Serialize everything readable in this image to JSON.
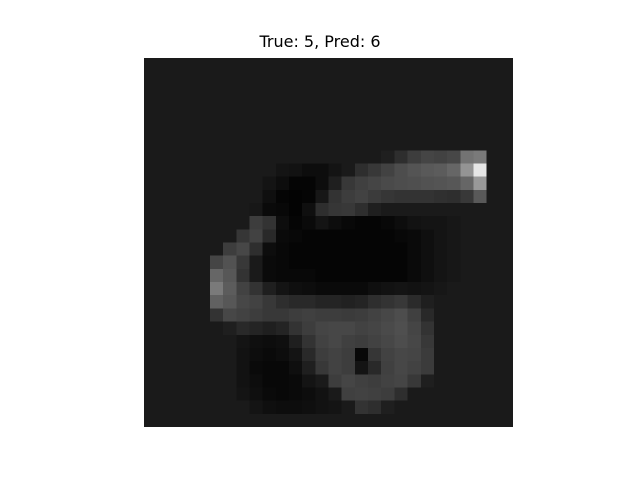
{
  "figure": {
    "title": "True: 5, Pred: 6",
    "true_label": 5,
    "predicted_label": 6,
    "colormap": "gray",
    "image_size": [
      28,
      28
    ],
    "background_value": 0.1
  },
  "pixels": [
    [
      0.1,
      0.1,
      0.1,
      0.1,
      0.1,
      0.1,
      0.1,
      0.1,
      0.1,
      0.1,
      0.1,
      0.1,
      0.1,
      0.1,
      0.1,
      0.1,
      0.1,
      0.1,
      0.1,
      0.1,
      0.1,
      0.1,
      0.1,
      0.1,
      0.1,
      0.1,
      0.1,
      0.1
    ],
    [
      0.1,
      0.1,
      0.1,
      0.1,
      0.1,
      0.1,
      0.1,
      0.1,
      0.1,
      0.1,
      0.1,
      0.1,
      0.1,
      0.1,
      0.1,
      0.1,
      0.1,
      0.1,
      0.1,
      0.1,
      0.1,
      0.1,
      0.1,
      0.1,
      0.1,
      0.1,
      0.1,
      0.1
    ],
    [
      0.1,
      0.1,
      0.1,
      0.1,
      0.1,
      0.1,
      0.1,
      0.1,
      0.1,
      0.1,
      0.1,
      0.1,
      0.1,
      0.1,
      0.1,
      0.1,
      0.1,
      0.1,
      0.1,
      0.1,
      0.1,
      0.1,
      0.1,
      0.1,
      0.1,
      0.1,
      0.1,
      0.1
    ],
    [
      0.1,
      0.1,
      0.1,
      0.1,
      0.1,
      0.1,
      0.1,
      0.1,
      0.1,
      0.1,
      0.1,
      0.1,
      0.1,
      0.1,
      0.1,
      0.1,
      0.1,
      0.1,
      0.1,
      0.1,
      0.1,
      0.1,
      0.1,
      0.1,
      0.1,
      0.1,
      0.1,
      0.1
    ],
    [
      0.1,
      0.1,
      0.1,
      0.1,
      0.1,
      0.1,
      0.1,
      0.1,
      0.1,
      0.1,
      0.1,
      0.1,
      0.1,
      0.1,
      0.1,
      0.1,
      0.1,
      0.1,
      0.1,
      0.1,
      0.1,
      0.1,
      0.1,
      0.1,
      0.1,
      0.1,
      0.1,
      0.1
    ],
    [
      0.1,
      0.1,
      0.1,
      0.1,
      0.1,
      0.1,
      0.1,
      0.1,
      0.1,
      0.1,
      0.1,
      0.1,
      0.1,
      0.1,
      0.1,
      0.1,
      0.1,
      0.1,
      0.1,
      0.1,
      0.1,
      0.1,
      0.1,
      0.1,
      0.1,
      0.1,
      0.1,
      0.1
    ],
    [
      0.1,
      0.1,
      0.1,
      0.1,
      0.1,
      0.1,
      0.1,
      0.1,
      0.1,
      0.1,
      0.1,
      0.1,
      0.1,
      0.1,
      0.1,
      0.1,
      0.1,
      0.1,
      0.1,
      0.1,
      0.1,
      0.1,
      0.1,
      0.1,
      0.1,
      0.1,
      0.1,
      0.1
    ],
    [
      0.1,
      0.1,
      0.1,
      0.1,
      0.1,
      0.1,
      0.1,
      0.1,
      0.1,
      0.1,
      0.1,
      0.1,
      0.1,
      0.1,
      0.1,
      0.1,
      0.1,
      0.1,
      0.12,
      0.18,
      0.24,
      0.27,
      0.26,
      0.28,
      0.45,
      0.48,
      0.1,
      0.1
    ],
    [
      0.1,
      0.1,
      0.1,
      0.1,
      0.1,
      0.1,
      0.1,
      0.1,
      0.1,
      0.1,
      0.08,
      0.07,
      0.05,
      0.05,
      0.08,
      0.1,
      0.18,
      0.22,
      0.26,
      0.3,
      0.33,
      0.35,
      0.36,
      0.4,
      0.58,
      0.9,
      0.1,
      0.1
    ],
    [
      0.1,
      0.1,
      0.1,
      0.1,
      0.1,
      0.1,
      0.1,
      0.1,
      0.1,
      0.08,
      0.05,
      0.02,
      0.02,
      0.05,
      0.12,
      0.22,
      0.25,
      0.27,
      0.29,
      0.3,
      0.31,
      0.32,
      0.33,
      0.34,
      0.4,
      0.6,
      0.1,
      0.1
    ],
    [
      0.1,
      0.1,
      0.1,
      0.1,
      0.1,
      0.1,
      0.1,
      0.1,
      0.1,
      0.06,
      0.02,
      0.01,
      0.02,
      0.09,
      0.2,
      0.24,
      0.26,
      0.23,
      0.21,
      0.2,
      0.2,
      0.2,
      0.19,
      0.18,
      0.22,
      0.35,
      0.1,
      0.1
    ],
    [
      0.1,
      0.1,
      0.1,
      0.1,
      0.1,
      0.1,
      0.1,
      0.1,
      0.09,
      0.04,
      0.03,
      0.01,
      0.06,
      0.18,
      0.21,
      0.22,
      0.18,
      0.12,
      0.1,
      0.1,
      0.1,
      0.1,
      0.1,
      0.1,
      0.1,
      0.1,
      0.1,
      0.1
    ],
    [
      0.1,
      0.1,
      0.1,
      0.1,
      0.1,
      0.1,
      0.1,
      0.1,
      0.24,
      0.2,
      0.05,
      0.02,
      0.04,
      0.08,
      0.05,
      0.03,
      0.02,
      0.02,
      0.03,
      0.05,
      0.07,
      0.08,
      0.08,
      0.09,
      0.1,
      0.1,
      0.1,
      0.1
    ],
    [
      0.1,
      0.1,
      0.1,
      0.1,
      0.1,
      0.1,
      0.1,
      0.21,
      0.26,
      0.16,
      0.04,
      0.03,
      0.02,
      0.02,
      0.02,
      0.02,
      0.02,
      0.02,
      0.02,
      0.03,
      0.04,
      0.06,
      0.08,
      0.09,
      0.1,
      0.1,
      0.1,
      0.1
    ],
    [
      0.1,
      0.1,
      0.1,
      0.1,
      0.1,
      0.1,
      0.24,
      0.28,
      0.18,
      0.05,
      0.03,
      0.02,
      0.02,
      0.02,
      0.02,
      0.02,
      0.02,
      0.02,
      0.02,
      0.02,
      0.04,
      0.06,
      0.08,
      0.09,
      0.1,
      0.1,
      0.1,
      0.1
    ],
    [
      0.1,
      0.1,
      0.1,
      0.1,
      0.1,
      0.27,
      0.32,
      0.22,
      0.1,
      0.04,
      0.03,
      0.02,
      0.02,
      0.02,
      0.02,
      0.02,
      0.02,
      0.02,
      0.02,
      0.02,
      0.04,
      0.06,
      0.08,
      0.09,
      0.1,
      0.1,
      0.1,
      0.1
    ],
    [
      0.1,
      0.1,
      0.1,
      0.1,
      0.1,
      0.4,
      0.34,
      0.2,
      0.1,
      0.04,
      0.03,
      0.03,
      0.03,
      0.02,
      0.02,
      0.02,
      0.02,
      0.02,
      0.02,
      0.02,
      0.04,
      0.06,
      0.08,
      0.09,
      0.1,
      0.1,
      0.1,
      0.1
    ],
    [
      0.1,
      0.1,
      0.1,
      0.1,
      0.1,
      0.48,
      0.36,
      0.26,
      0.2,
      0.12,
      0.08,
      0.06,
      0.05,
      0.04,
      0.04,
      0.04,
      0.04,
      0.06,
      0.07,
      0.08,
      0.07,
      0.08,
      0.09,
      0.1,
      0.1,
      0.1,
      0.1,
      0.1
    ],
    [
      0.1,
      0.1,
      0.1,
      0.1,
      0.1,
      0.38,
      0.34,
      0.28,
      0.26,
      0.22,
      0.18,
      0.16,
      0.16,
      0.14,
      0.14,
      0.13,
      0.14,
      0.18,
      0.2,
      0.22,
      0.17,
      0.12,
      0.1,
      0.1,
      0.1,
      0.1,
      0.1,
      0.1
    ],
    [
      0.1,
      0.1,
      0.1,
      0.1,
      0.1,
      0.2,
      0.28,
      0.26,
      0.24,
      0.22,
      0.22,
      0.24,
      0.25,
      0.24,
      0.24,
      0.23,
      0.24,
      0.26,
      0.28,
      0.3,
      0.25,
      0.16,
      0.1,
      0.1,
      0.1,
      0.1,
      0.1,
      0.1
    ],
    [
      0.1,
      0.1,
      0.1,
      0.1,
      0.1,
      0.1,
      0.12,
      0.16,
      0.14,
      0.12,
      0.14,
      0.2,
      0.24,
      0.27,
      0.28,
      0.28,
      0.26,
      0.27,
      0.29,
      0.31,
      0.27,
      0.2,
      0.1,
      0.1,
      0.1,
      0.1,
      0.1,
      0.1
    ],
    [
      0.1,
      0.1,
      0.1,
      0.1,
      0.1,
      0.1,
      0.1,
      0.08,
      0.06,
      0.05,
      0.06,
      0.12,
      0.2,
      0.26,
      0.28,
      0.25,
      0.24,
      0.26,
      0.28,
      0.3,
      0.28,
      0.22,
      0.1,
      0.1,
      0.1,
      0.1,
      0.1,
      0.1
    ],
    [
      0.1,
      0.1,
      0.1,
      0.1,
      0.1,
      0.1,
      0.1,
      0.07,
      0.05,
      0.04,
      0.05,
      0.08,
      0.16,
      0.24,
      0.26,
      0.24,
      0.03,
      0.21,
      0.26,
      0.28,
      0.27,
      0.23,
      0.1,
      0.1,
      0.1,
      0.1,
      0.1,
      0.1
    ],
    [
      0.1,
      0.1,
      0.1,
      0.1,
      0.1,
      0.1,
      0.1,
      0.07,
      0.04,
      0.03,
      0.03,
      0.06,
      0.12,
      0.22,
      0.26,
      0.24,
      0.08,
      0.16,
      0.25,
      0.28,
      0.26,
      0.23,
      0.1,
      0.1,
      0.1,
      0.1,
      0.1,
      0.1
    ],
    [
      0.1,
      0.1,
      0.1,
      0.1,
      0.1,
      0.1,
      0.1,
      0.07,
      0.05,
      0.03,
      0.03,
      0.04,
      0.08,
      0.1,
      0.24,
      0.27,
      0.25,
      0.24,
      0.26,
      0.27,
      0.22,
      0.12,
      0.1,
      0.1,
      0.1,
      0.1,
      0.1,
      0.1
    ],
    [
      0.1,
      0.1,
      0.1,
      0.1,
      0.1,
      0.1,
      0.1,
      0.08,
      0.06,
      0.04,
      0.03,
      0.04,
      0.05,
      0.07,
      0.1,
      0.25,
      0.26,
      0.25,
      0.24,
      0.18,
      0.1,
      0.1,
      0.1,
      0.1,
      0.1,
      0.1,
      0.1,
      0.1
    ],
    [
      0.1,
      0.1,
      0.1,
      0.1,
      0.1,
      0.1,
      0.1,
      0.1,
      0.08,
      0.06,
      0.05,
      0.05,
      0.06,
      0.07,
      0.08,
      0.1,
      0.2,
      0.18,
      0.12,
      0.1,
      0.1,
      0.1,
      0.1,
      0.1,
      0.1,
      0.1,
      0.1,
      0.1
    ],
    [
      0.1,
      0.1,
      0.1,
      0.1,
      0.1,
      0.1,
      0.1,
      0.1,
      0.1,
      0.1,
      0.1,
      0.1,
      0.1,
      0.1,
      0.1,
      0.1,
      0.1,
      0.1,
      0.1,
      0.1,
      0.1,
      0.1,
      0.1,
      0.1,
      0.1,
      0.1,
      0.1,
      0.1
    ]
  ]
}
